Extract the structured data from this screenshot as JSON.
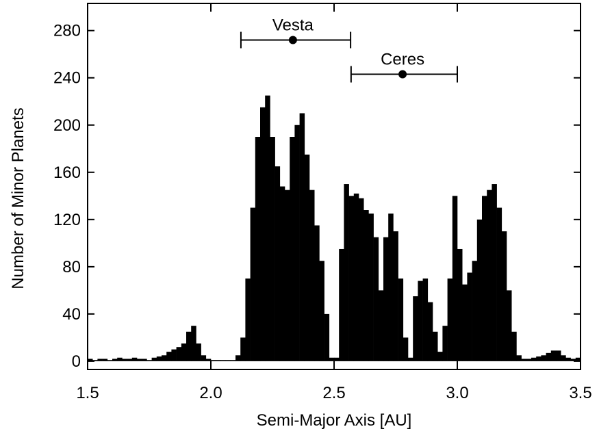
{
  "chart_data": {
    "type": "histogram",
    "xlabel": "Semi-Major Axis [AU]",
    "ylabel": "Number of Minor Planets",
    "color": "#000000",
    "bins": [
      1.5,
      1.52,
      1.54,
      1.56,
      1.58,
      1.6,
      1.62,
      1.64,
      1.66,
      1.68,
      1.7,
      1.72,
      1.74,
      1.76,
      1.78,
      1.8,
      1.82,
      1.84,
      1.86,
      1.88,
      1.9,
      1.92,
      1.94,
      1.96,
      1.98,
      2.0,
      2.02,
      2.04,
      2.06,
      2.08,
      2.1,
      2.12,
      2.14,
      2.16,
      2.18,
      2.2,
      2.22,
      2.24,
      2.26,
      2.28,
      2.3,
      2.32,
      2.34,
      2.36,
      2.38,
      2.4,
      2.42,
      2.44,
      2.46,
      2.48,
      2.5,
      2.52,
      2.54,
      2.56,
      2.58,
      2.6,
      2.62,
      2.64,
      2.66,
      2.68,
      2.7,
      2.72,
      2.74,
      2.76,
      2.78,
      2.8,
      2.82,
      2.84,
      2.86,
      2.88,
      2.9,
      2.92,
      2.94,
      2.96,
      2.98,
      3.0,
      3.02,
      3.04,
      3.06,
      3.08,
      3.1,
      3.12,
      3.14,
      3.16,
      3.18,
      3.2,
      3.22,
      3.24,
      3.26,
      3.28,
      3.3,
      3.32,
      3.34,
      3.36,
      3.38,
      3.4,
      3.42,
      3.44,
      3.46,
      3.48,
      3.5
    ],
    "values": [
      2,
      1,
      2,
      2,
      1,
      2,
      3,
      2,
      2,
      3,
      2,
      2,
      1,
      3,
      4,
      5,
      8,
      10,
      12,
      15,
      25,
      30,
      15,
      5,
      2,
      1,
      1,
      1,
      1,
      1,
      5,
      20,
      70,
      130,
      190,
      215,
      225,
      190,
      165,
      148,
      145,
      190,
      200,
      210,
      175,
      145,
      115,
      85,
      40,
      3,
      3,
      95,
      150,
      140,
      142,
      138,
      128,
      125,
      105,
      60,
      105,
      125,
      110,
      70,
      20,
      3,
      55,
      68,
      70,
      50,
      25,
      8,
      30,
      70,
      140,
      95,
      65,
      75,
      85,
      120,
      140,
      145,
      150,
      130,
      110,
      60,
      25,
      5,
      2,
      2,
      3,
      4,
      5,
      7,
      9,
      9,
      5,
      3,
      2,
      3
    ],
    "xlim": [
      1.5,
      3.5
    ],
    "ylim": [
      -7,
      303
    ],
    "xticks": [
      {
        "value": 1.5,
        "label": "1.5"
      },
      {
        "value": 2.0,
        "label": "2.0"
      },
      {
        "value": 2.5,
        "label": "2.5"
      },
      {
        "value": 3.0,
        "label": "3.0"
      },
      {
        "value": 3.5,
        "label": "3.5"
      }
    ],
    "yticks": [
      0,
      40,
      80,
      120,
      160,
      200,
      240,
      280
    ],
    "markers": [
      {
        "label": "Vesta",
        "x": 2.333,
        "xmin": 2.122,
        "xmax": 2.567,
        "y": 272
      },
      {
        "label": "Ceres",
        "x": 2.778,
        "xmin": 2.569,
        "xmax": 3.0,
        "y": 243
      }
    ]
  }
}
